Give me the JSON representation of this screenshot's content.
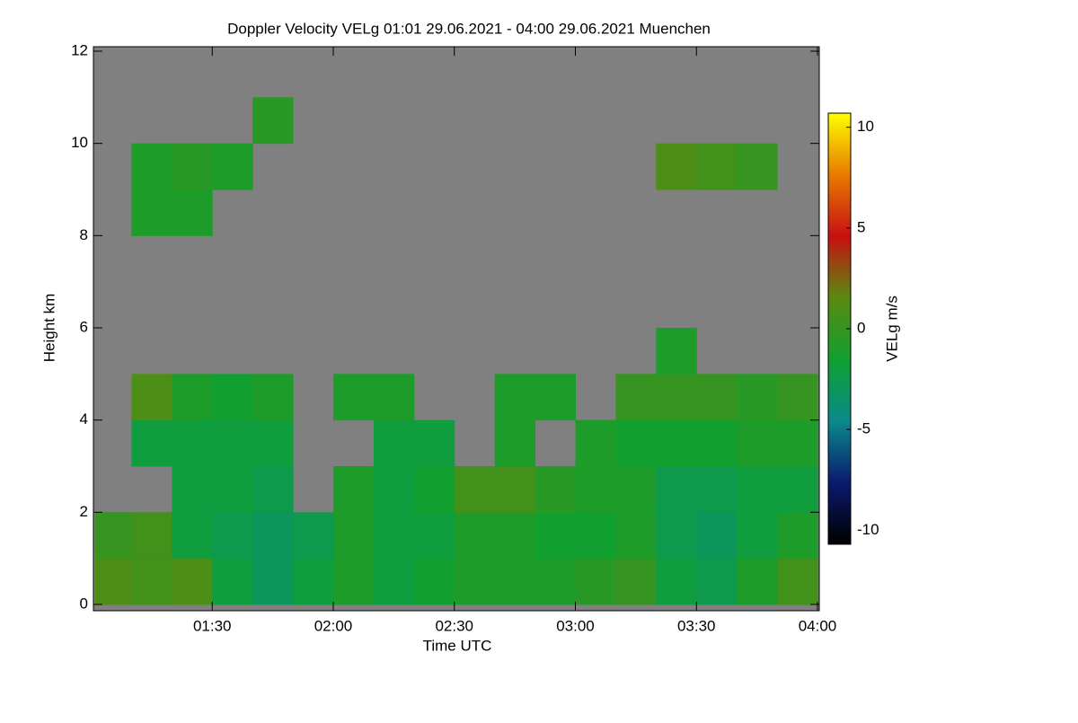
{
  "chart_data": {
    "type": "heatmap",
    "title": "Doppler Velocity VELg   01:01 29.06.2021 - 04:00 29.06.2021 Muenchen",
    "x_label": "Time UTC",
    "y_label": "Height km",
    "colorbar_label": "VELg m/s",
    "xlim": [
      61,
      240
    ],
    "xticks": [
      {
        "value": 90,
        "label": "01:30"
      },
      {
        "value": 120,
        "label": "02:00"
      },
      {
        "value": 150,
        "label": "02:30"
      },
      {
        "value": 180,
        "label": "03:00"
      },
      {
        "value": 210,
        "label": "03:30"
      },
      {
        "value": 240,
        "label": "04:00"
      }
    ],
    "ylim": [
      0,
      12
    ],
    "yticks": [
      0,
      2,
      4,
      6,
      8,
      10,
      12
    ],
    "xbins": [
      61,
      70,
      80,
      90,
      100,
      110,
      120,
      130,
      140,
      150,
      160,
      170,
      180,
      190,
      200,
      210,
      220,
      230,
      240
    ],
    "ybins": [
      0,
      1,
      2,
      3,
      4,
      5,
      6,
      7,
      8,
      9,
      10,
      11,
      12
    ],
    "zlim": [
      -10.7,
      10.7
    ],
    "zticks": [
      -10,
      -5,
      0,
      5,
      10
    ],
    "colorscale": [
      "#000000",
      "#0a1a6e",
      "#0a8a8a",
      "#10a030",
      "#5a8a10",
      "#c81010",
      "#e87a00",
      "#ffff00"
    ],
    "background": "#808080",
    "z": [
      [
        1,
        0.5,
        1,
        -2,
        -3,
        -2,
        -1,
        -2,
        -1.5,
        -1,
        -1,
        -1,
        -0.5,
        0,
        -2,
        -2.5,
        -1,
        0.5
      ],
      [
        0,
        0.5,
        -2,
        -2.5,
        -3,
        -2.5,
        -1,
        -2,
        -2,
        -1,
        -1,
        -1.5,
        -1.5,
        -1,
        -2.5,
        -3,
        -2,
        -1
      ],
      [
        null,
        null,
        -2,
        -2,
        -2.5,
        null,
        -1,
        -2,
        -1.5,
        0.5,
        0.5,
        -0.5,
        -1,
        -1,
        -2.5,
        -2.5,
        -2,
        -2
      ],
      [
        null,
        -2,
        -2,
        -2,
        -2,
        null,
        null,
        -2,
        -2,
        null,
        -1,
        null,
        -1,
        -1.5,
        -1.5,
        -1.5,
        -1,
        -1
      ],
      [
        null,
        1,
        -1,
        -1.5,
        -1,
        null,
        -1,
        -1,
        null,
        null,
        -1,
        -1,
        null,
        0,
        0,
        0,
        -0.5,
        0
      ],
      [
        null,
        null,
        null,
        null,
        null,
        null,
        null,
        null,
        null,
        null,
        null,
        null,
        null,
        null,
        -1,
        null,
        null,
        null
      ],
      [
        null,
        null,
        null,
        null,
        null,
        null,
        null,
        null,
        null,
        null,
        null,
        null,
        null,
        null,
        null,
        null,
        null,
        null
      ],
      [
        null,
        null,
        null,
        null,
        null,
        null,
        null,
        null,
        null,
        null,
        null,
        null,
        null,
        null,
        null,
        null,
        null,
        null
      ],
      [
        null,
        -1,
        -1,
        null,
        null,
        null,
        null,
        null,
        null,
        null,
        null,
        null,
        null,
        null,
        null,
        null,
        null,
        null
      ],
      [
        null,
        -1,
        -0.5,
        -1,
        null,
        null,
        null,
        null,
        null,
        null,
        null,
        null,
        null,
        null,
        1,
        0.5,
        0,
        null
      ],
      [
        null,
        null,
        null,
        null,
        -0.5,
        null,
        null,
        null,
        null,
        null,
        null,
        null,
        null,
        null,
        null,
        null,
        null,
        null
      ],
      [
        null,
        null,
        null,
        null,
        null,
        null,
        null,
        null,
        null,
        null,
        null,
        null,
        null,
        null,
        null,
        null,
        null,
        null
      ]
    ]
  }
}
